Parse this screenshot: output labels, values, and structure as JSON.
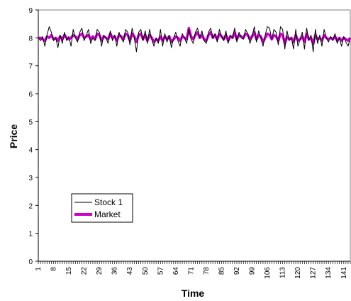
{
  "chart_data": {
    "type": "line",
    "xlabel": "Time",
    "ylabel": "Price",
    "ylim": [
      0,
      9
    ],
    "yticks": [
      0,
      1,
      2,
      3,
      4,
      5,
      6,
      7,
      8,
      9
    ],
    "xlim": [
      1,
      144
    ],
    "xticks": [
      1,
      8,
      15,
      22,
      29,
      36,
      43,
      50,
      57,
      64,
      71,
      78,
      85,
      92,
      99,
      106,
      113,
      120,
      127,
      134,
      141
    ],
    "grid": false,
    "legend": "bottom-left",
    "series": [
      {
        "name": "Stock 1",
        "color": "#000000",
        "x": [
          1,
          2,
          3,
          4,
          5,
          6,
          7,
          8,
          9,
          10,
          11,
          12,
          13,
          14,
          15,
          16,
          17,
          18,
          19,
          20,
          21,
          22,
          23,
          24,
          25,
          26,
          27,
          28,
          29,
          30,
          31,
          32,
          33,
          34,
          35,
          36,
          37,
          38,
          39,
          40,
          41,
          42,
          43,
          44,
          45,
          46,
          47,
          48,
          49,
          50,
          51,
          52,
          53,
          54,
          55,
          56,
          57,
          58,
          59,
          60,
          61,
          62,
          63,
          64,
          65,
          66,
          67,
          68,
          69,
          70,
          71,
          72,
          73,
          74,
          75,
          76,
          77,
          78,
          79,
          80,
          81,
          82,
          83,
          84,
          85,
          86,
          87,
          88,
          89,
          90,
          91,
          92,
          93,
          94,
          95,
          96,
          97,
          98,
          99,
          100,
          101,
          102,
          103,
          104,
          105,
          106,
          107,
          108,
          109,
          110,
          111,
          112,
          113,
          114,
          115,
          116,
          117,
          118,
          119,
          120,
          121,
          122,
          123,
          124,
          125,
          126,
          127,
          128,
          129,
          130,
          131,
          132,
          133,
          134,
          135,
          136,
          137,
          138,
          139,
          140,
          141,
          142,
          143,
          144
        ],
        "values": [
          8.0,
          7.9,
          8.05,
          7.7,
          8.1,
          8.4,
          8.2,
          7.9,
          8.0,
          7.65,
          8.1,
          7.8,
          8.2,
          7.9,
          8.05,
          7.7,
          8.3,
          8.0,
          7.85,
          8.2,
          8.35,
          7.9,
          8.1,
          8.3,
          7.8,
          8.0,
          7.9,
          8.3,
          8.2,
          7.7,
          8.1,
          8.0,
          7.8,
          8.25,
          7.9,
          8.1,
          7.7,
          8.2,
          8.0,
          7.85,
          8.3,
          8.2,
          7.75,
          8.35,
          8.0,
          7.5,
          8.2,
          8.3,
          7.9,
          8.25,
          7.8,
          8.3,
          7.95,
          7.7,
          8.0,
          7.8,
          8.3,
          7.7,
          8.15,
          7.85,
          8.1,
          7.65,
          8.0,
          8.2,
          7.9,
          7.7,
          8.15,
          8.0,
          7.8,
          8.3,
          7.95,
          7.8,
          8.2,
          8.35,
          8.0,
          8.25,
          7.9,
          7.8,
          8.2,
          8.35,
          8.0,
          8.15,
          7.85,
          8.3,
          8.05,
          7.9,
          8.25,
          7.8,
          8.1,
          8.0,
          8.35,
          7.85,
          8.2,
          8.0,
          7.95,
          8.3,
          8.15,
          7.8,
          8.05,
          8.4,
          7.85,
          8.25,
          8.0,
          7.7,
          8.1,
          8.4,
          8.35,
          7.95,
          8.3,
          8.2,
          7.75,
          8.4,
          8.3,
          7.6,
          8.25,
          7.9,
          8.0,
          7.6,
          8.3,
          7.7,
          7.95,
          8.2,
          7.6,
          8.35,
          7.9,
          8.1,
          7.5,
          8.3,
          7.8,
          8.1,
          7.7,
          8.3,
          8.0,
          7.85,
          8.05,
          7.9,
          8.15,
          7.8,
          8.0,
          7.7,
          8.05,
          7.85,
          7.7,
          8.0
        ]
      },
      {
        "name": "Market",
        "color": "#cc00cc",
        "x": [
          1,
          2,
          3,
          4,
          5,
          6,
          7,
          8,
          9,
          10,
          11,
          12,
          13,
          14,
          15,
          16,
          17,
          18,
          19,
          20,
          21,
          22,
          23,
          24,
          25,
          26,
          27,
          28,
          29,
          30,
          31,
          32,
          33,
          34,
          35,
          36,
          37,
          38,
          39,
          40,
          41,
          42,
          43,
          44,
          45,
          46,
          47,
          48,
          49,
          50,
          51,
          52,
          53,
          54,
          55,
          56,
          57,
          58,
          59,
          60,
          61,
          62,
          63,
          64,
          65,
          66,
          67,
          68,
          69,
          70,
          71,
          72,
          73,
          74,
          75,
          76,
          77,
          78,
          79,
          80,
          81,
          82,
          83,
          84,
          85,
          86,
          87,
          88,
          89,
          90,
          91,
          92,
          93,
          94,
          95,
          96,
          97,
          98,
          99,
          100,
          101,
          102,
          103,
          104,
          105,
          106,
          107,
          108,
          109,
          110,
          111,
          112,
          113,
          114,
          115,
          116,
          117,
          118,
          119,
          120,
          121,
          122,
          123,
          124,
          125,
          126,
          127,
          128,
          129,
          130,
          131,
          132,
          133,
          134,
          135,
          136,
          137,
          138,
          139,
          140,
          141,
          142,
          143,
          144
        ],
        "values": [
          8.0,
          8.0,
          7.95,
          7.9,
          8.05,
          8.0,
          8.1,
          7.95,
          8.0,
          7.9,
          8.05,
          7.95,
          8.1,
          8.0,
          7.95,
          8.0,
          8.1,
          8.05,
          7.95,
          8.1,
          8.15,
          8.0,
          8.05,
          8.1,
          7.95,
          8.05,
          7.95,
          8.15,
          8.1,
          7.9,
          8.05,
          8.0,
          7.95,
          8.15,
          8.0,
          8.05,
          7.9,
          8.1,
          8.05,
          7.95,
          8.15,
          8.1,
          7.9,
          8.15,
          8.05,
          7.85,
          8.1,
          8.15,
          7.95,
          8.1,
          7.9,
          8.1,
          8.0,
          7.85,
          7.95,
          7.9,
          8.05,
          7.9,
          8.05,
          7.95,
          8.05,
          7.85,
          7.95,
          8.05,
          8.0,
          7.9,
          8.05,
          8.0,
          7.95,
          8.35,
          8.05,
          7.95,
          8.1,
          8.2,
          8.0,
          8.1,
          7.95,
          7.9,
          8.1,
          8.2,
          8.0,
          8.1,
          7.95,
          8.15,
          8.05,
          7.95,
          8.1,
          7.9,
          8.05,
          8.0,
          8.2,
          7.95,
          8.1,
          8.05,
          8.0,
          8.15,
          8.1,
          7.95,
          8.05,
          8.2,
          7.95,
          8.1,
          8.05,
          7.85,
          8.0,
          8.15,
          8.1,
          7.95,
          8.1,
          8.05,
          7.9,
          8.15,
          8.1,
          7.8,
          8.05,
          7.95,
          8.0,
          7.85,
          8.1,
          7.9,
          7.95,
          8.05,
          7.85,
          8.15,
          7.95,
          8.0,
          7.8,
          8.1,
          7.95,
          8.0,
          7.9,
          8.1,
          8.0,
          7.95,
          8.0,
          7.95,
          8.05,
          7.9,
          8.0,
          7.9,
          8.0,
          7.95,
          7.9,
          8.0
        ]
      }
    ]
  }
}
